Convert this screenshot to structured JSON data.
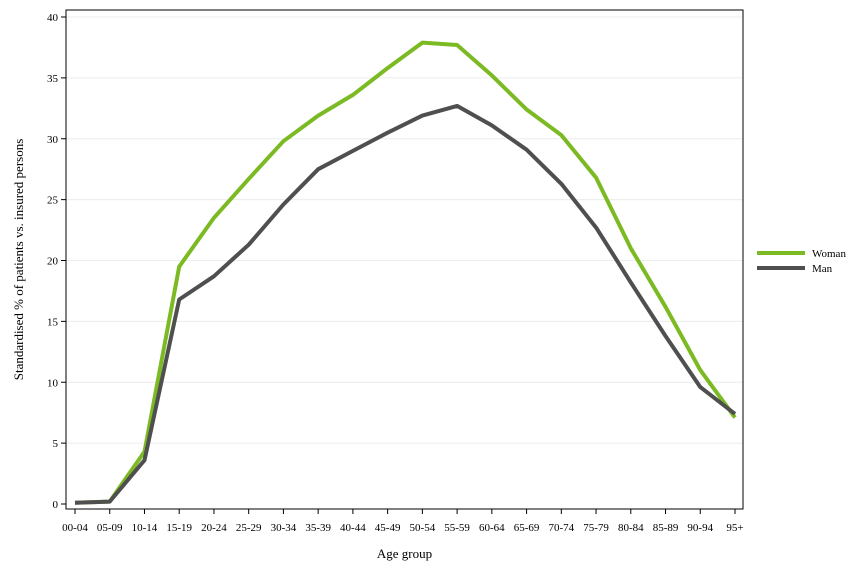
{
  "chart_data": {
    "type": "line",
    "title": "",
    "xlabel": "Age group",
    "ylabel": "Standardised % of patients vs. insured persons",
    "ylim": [
      0,
      40
    ],
    "yticks": [
      0,
      5,
      10,
      15,
      20,
      25,
      30,
      35,
      40
    ],
    "grid": true,
    "legend_position": "right",
    "categories": [
      "00-04",
      "05-09",
      "10-14",
      "15-19",
      "20-24",
      "25-29",
      "30-34",
      "35-39",
      "40-44",
      "45-49",
      "50-54",
      "55-59",
      "60-64",
      "65-69",
      "70-74",
      "75-79",
      "80-84",
      "85-89",
      "90-94",
      "95+"
    ],
    "series": [
      {
        "name": "Woman",
        "color": "#7cba24",
        "values": [
          0.1,
          0.2,
          4.3,
          19.5,
          23.5,
          26.7,
          29.8,
          31.9,
          33.6,
          35.8,
          37.9,
          37.7,
          35.2,
          32.4,
          30.3,
          26.8,
          21.0,
          16.2,
          11.0,
          7.1
        ]
      },
      {
        "name": "Man",
        "color": "#4f4f4f",
        "values": [
          0.1,
          0.2,
          3.6,
          16.8,
          18.7,
          21.3,
          24.6,
          27.5,
          29.0,
          30.5,
          31.9,
          32.7,
          31.1,
          29.1,
          26.3,
          22.7,
          18.2,
          13.8,
          9.6,
          7.4
        ]
      }
    ]
  }
}
